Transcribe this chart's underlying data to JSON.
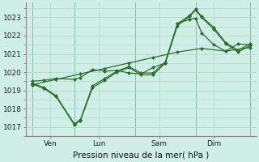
{
  "xlabel": "Pression niveau de la mer( hPa )",
  "background_color": "#ceeee6",
  "grid_color": "#b8ddd6",
  "line_color": "#2d6e2d",
  "ylim": [
    1016.5,
    1023.8
  ],
  "xlim": [
    -0.5,
    18.5
  ],
  "yticks": [
    1017,
    1018,
    1019,
    1020,
    1021,
    1022,
    1023
  ],
  "xtick_positions": [
    1.5,
    5.5,
    10.5,
    15.0
  ],
  "xtick_labels": [
    "Ven",
    "Lun",
    "Sam",
    "Dim"
  ],
  "vline_positions": [
    0,
    3.5,
    8.5,
    13.5,
    18
  ],
  "line1_x": [
    0,
    2,
    4,
    6,
    8,
    10,
    12,
    14,
    16,
    18
  ],
  "line1_y": [
    1019.3,
    1019.6,
    1019.9,
    1020.2,
    1020.5,
    1020.8,
    1021.1,
    1021.3,
    1021.15,
    1021.35
  ],
  "line2_x": [
    0,
    1,
    2,
    3.5,
    4,
    5,
    6,
    7,
    8,
    9,
    10,
    11,
    12,
    13,
    13.5,
    14,
    15,
    16,
    17,
    18
  ],
  "line2_y": [
    1019.35,
    1019.1,
    1018.65,
    1017.1,
    1017.35,
    1019.15,
    1019.55,
    1020.0,
    1020.25,
    1019.85,
    1019.85,
    1020.5,
    1022.55,
    1023.05,
    1023.4,
    1023.0,
    1022.35,
    1021.55,
    1021.1,
    1021.45
  ],
  "line3_x": [
    0,
    1,
    2,
    3.5,
    4,
    5,
    6,
    7,
    8,
    9,
    10,
    11,
    12,
    13,
    13.5,
    14,
    15,
    16,
    17,
    18
  ],
  "line3_y": [
    1019.4,
    1019.15,
    1018.7,
    1017.15,
    1017.4,
    1019.25,
    1019.65,
    1020.05,
    1020.3,
    1019.95,
    1019.95,
    1020.55,
    1022.65,
    1023.1,
    1023.45,
    1023.05,
    1022.45,
    1021.6,
    1021.2,
    1021.55
  ],
  "line4_x": [
    0,
    1,
    2,
    3.5,
    4,
    5,
    6,
    7,
    8,
    9,
    10,
    11,
    12,
    13,
    13.5,
    14,
    15,
    16,
    17,
    18
  ],
  "line4_y": [
    1019.5,
    1019.55,
    1019.65,
    1019.6,
    1019.7,
    1020.15,
    1020.05,
    1020.1,
    1019.95,
    1019.9,
    1020.25,
    1020.5,
    1022.65,
    1022.9,
    1022.95,
    1022.15,
    1021.5,
    1021.15,
    1021.55,
    1021.5
  ]
}
